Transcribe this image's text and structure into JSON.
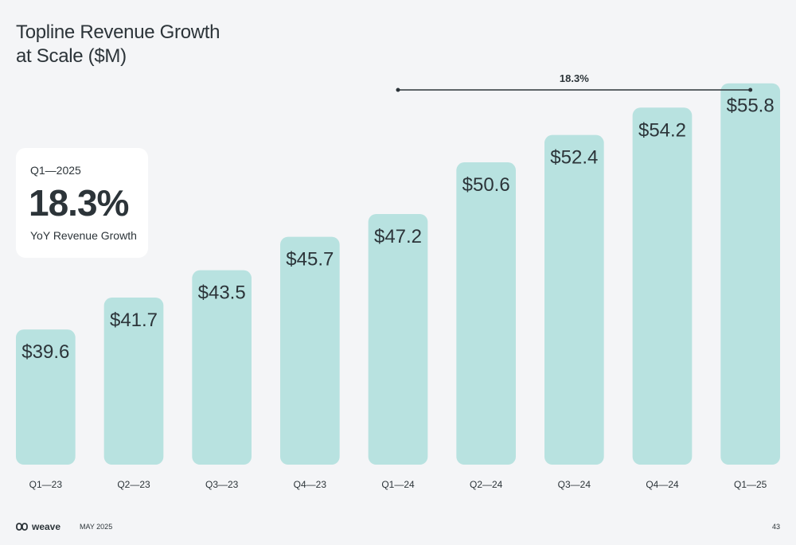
{
  "title": {
    "line1": "Topline Revenue Growth",
    "line2": "at Scale ($M)"
  },
  "kpi": {
    "period": "Q1—2025",
    "value": "18.3%",
    "label": "YoY Revenue Growth"
  },
  "chart_data": {
    "type": "bar",
    "categories": [
      "Q1—23",
      "Q2—23",
      "Q3—23",
      "Q4—23",
      "Q1—24",
      "Q2—24",
      "Q3—24",
      "Q4—24",
      "Q1—25"
    ],
    "values": [
      39.6,
      41.7,
      43.5,
      45.7,
      47.2,
      50.6,
      52.4,
      54.2,
      55.8
    ],
    "data_labels": [
      "$39.6",
      "$41.7",
      "$43.5",
      "$45.7",
      "$47.2",
      "$50.6",
      "$52.4",
      "$54.2",
      "$55.8"
    ],
    "bar_color": "#b8e2e0",
    "annotation": {
      "text": "18.3%",
      "from_category": "Q1—24",
      "to_category": "Q1—25"
    },
    "grid": false,
    "legend": "none"
  },
  "footer": {
    "brand": "weave",
    "date": "MAY 2025",
    "page": "43"
  }
}
